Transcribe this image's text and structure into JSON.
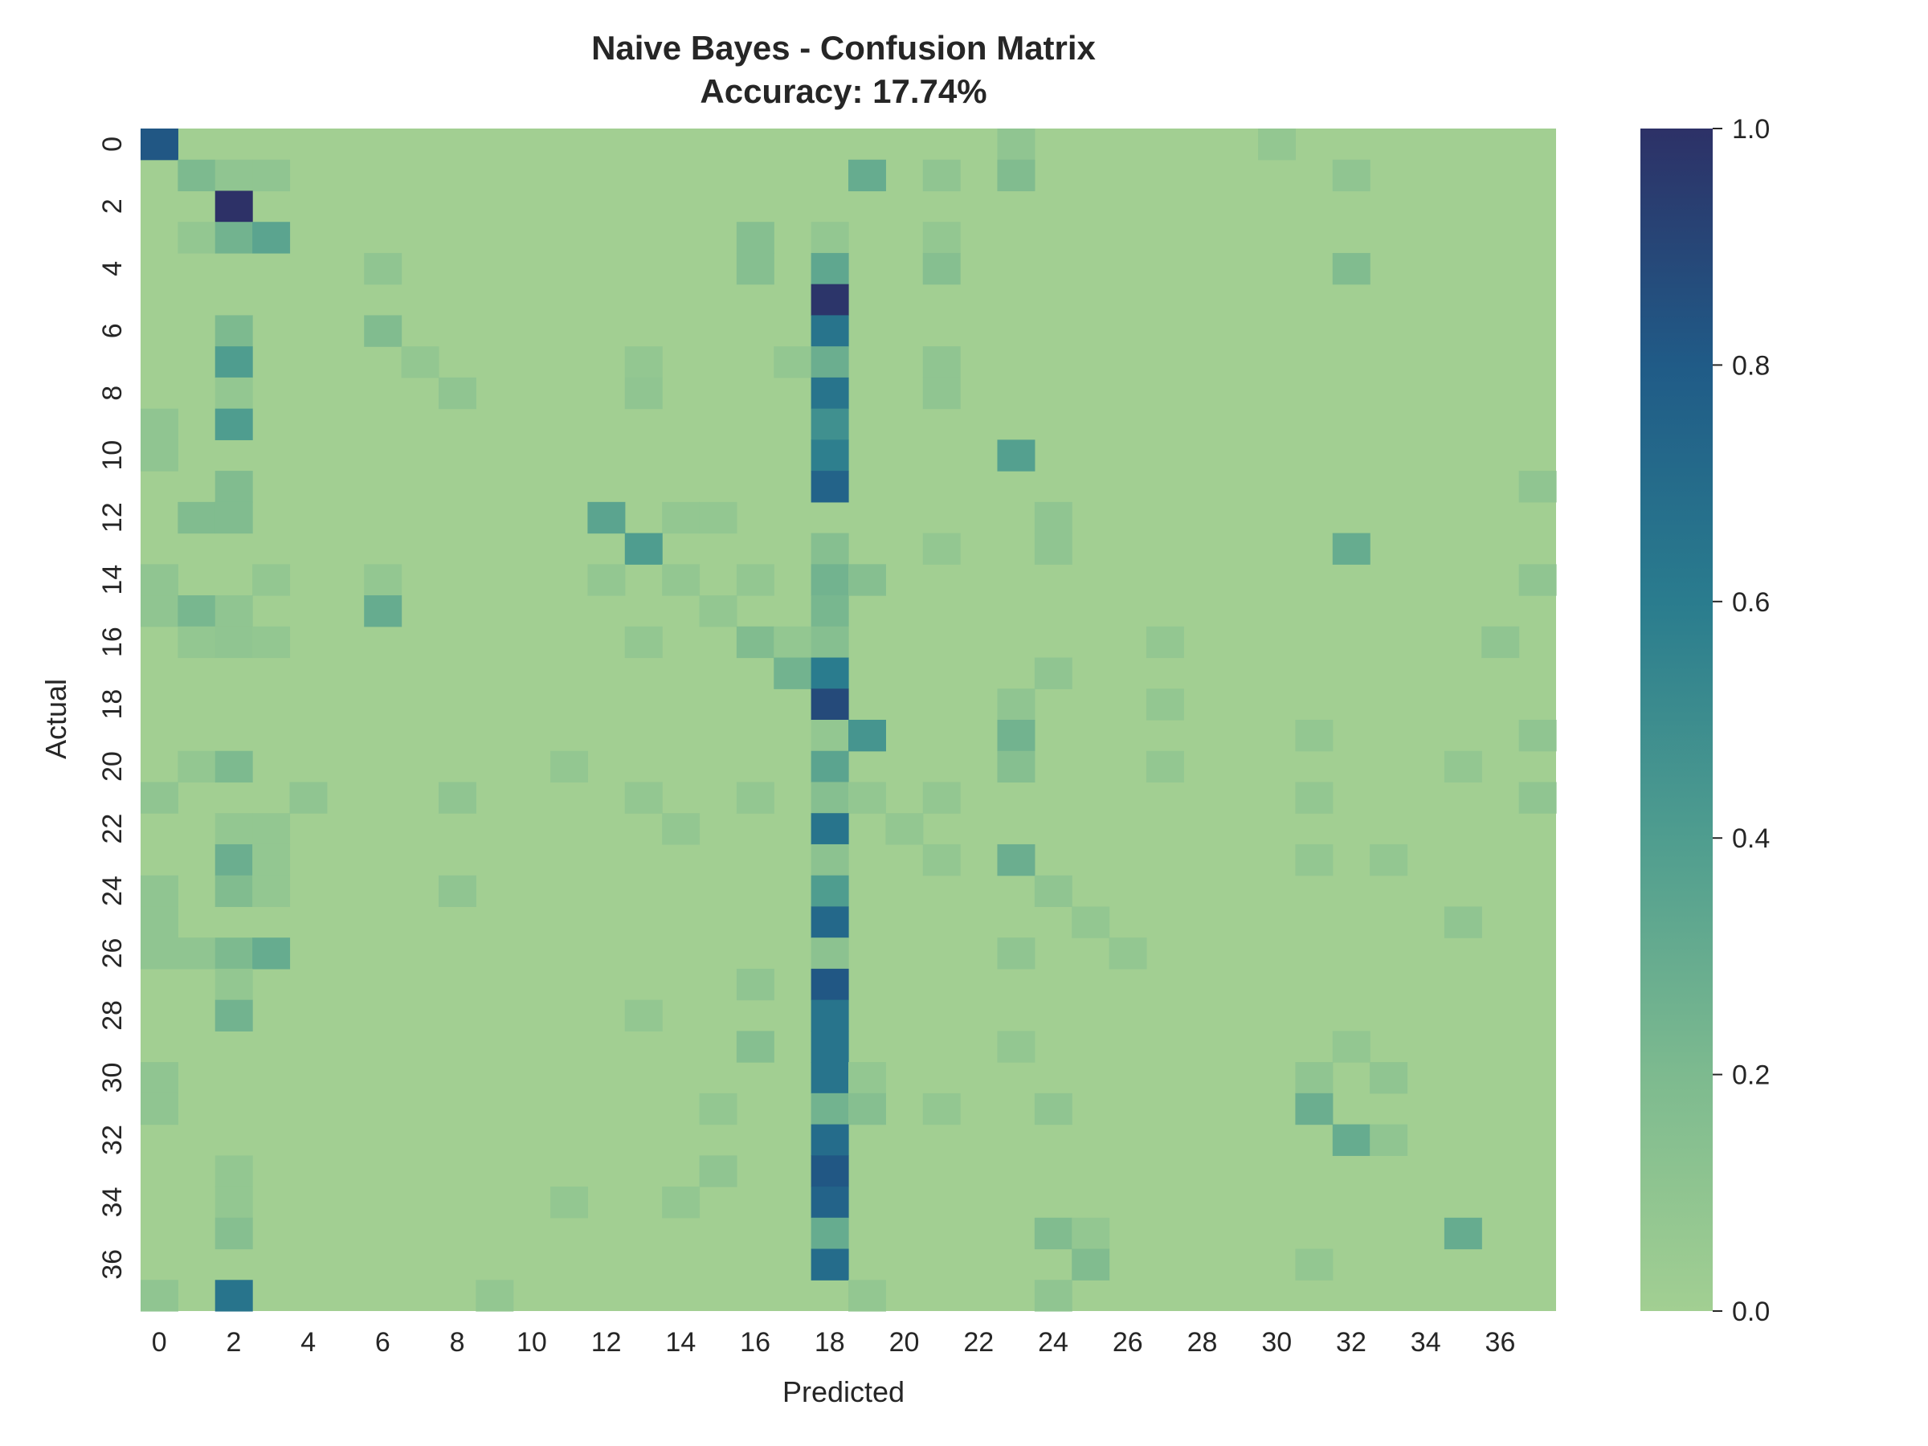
{
  "chart_data": {
    "type": "heatmap",
    "title": "Naive Bayes - Confusion Matrix",
    "subtitle": "Accuracy: 17.74%",
    "xlabel": "Predicted",
    "ylabel": "Actual",
    "n_classes": 38,
    "x_tick_labels": [
      "0",
      "2",
      "4",
      "6",
      "8",
      "10",
      "12",
      "14",
      "16",
      "18",
      "20",
      "22",
      "24",
      "26",
      "28",
      "30",
      "32",
      "34",
      "36"
    ],
    "y_tick_labels": [
      "0",
      "2",
      "4",
      "6",
      "8",
      "10",
      "12",
      "14",
      "16",
      "18",
      "20",
      "22",
      "24",
      "26",
      "28",
      "30",
      "32",
      "34",
      "36"
    ],
    "colorbar": {
      "range": [
        0.0,
        1.0
      ],
      "tick_labels": [
        "0.0",
        "0.2",
        "0.4",
        "0.6",
        "0.8",
        "1.0"
      ],
      "colors": [
        "#a2cf92",
        "#7dba8f",
        "#4f9d8f",
        "#2a7c8e",
        "#205b87",
        "#2d3167"
      ]
    },
    "cells": [
      [
        0,
        0,
        0.82
      ],
      [
        0,
        23,
        0.1
      ],
      [
        0,
        30,
        0.08
      ],
      [
        1,
        1,
        0.2
      ],
      [
        1,
        2,
        0.1
      ],
      [
        1,
        3,
        0.1
      ],
      [
        1,
        19,
        0.3
      ],
      [
        1,
        21,
        0.1
      ],
      [
        1,
        23,
        0.18
      ],
      [
        1,
        32,
        0.1
      ],
      [
        2,
        2,
        1.0
      ],
      [
        3,
        1,
        0.08
      ],
      [
        3,
        2,
        0.25
      ],
      [
        3,
        3,
        0.35
      ],
      [
        3,
        16,
        0.15
      ],
      [
        3,
        18,
        0.08
      ],
      [
        3,
        21,
        0.08
      ],
      [
        4,
        6,
        0.1
      ],
      [
        4,
        16,
        0.15
      ],
      [
        4,
        18,
        0.33
      ],
      [
        4,
        21,
        0.15
      ],
      [
        4,
        32,
        0.18
      ],
      [
        5,
        18,
        0.98
      ],
      [
        6,
        2,
        0.2
      ],
      [
        6,
        6,
        0.18
      ],
      [
        6,
        18,
        0.65
      ],
      [
        7,
        2,
        0.4
      ],
      [
        7,
        7,
        0.08
      ],
      [
        7,
        13,
        0.08
      ],
      [
        7,
        17,
        0.08
      ],
      [
        7,
        18,
        0.28
      ],
      [
        7,
        21,
        0.1
      ],
      [
        8,
        2,
        0.08
      ],
      [
        8,
        8,
        0.1
      ],
      [
        8,
        13,
        0.1
      ],
      [
        8,
        18,
        0.65
      ],
      [
        8,
        21,
        0.1
      ],
      [
        9,
        0,
        0.1
      ],
      [
        9,
        2,
        0.4
      ],
      [
        9,
        18,
        0.48
      ],
      [
        10,
        0,
        0.1
      ],
      [
        10,
        18,
        0.58
      ],
      [
        10,
        23,
        0.38
      ],
      [
        11,
        2,
        0.18
      ],
      [
        11,
        18,
        0.75
      ],
      [
        11,
        37,
        0.1
      ],
      [
        12,
        1,
        0.18
      ],
      [
        12,
        2,
        0.18
      ],
      [
        12,
        12,
        0.35
      ],
      [
        12,
        14,
        0.08
      ],
      [
        12,
        15,
        0.08
      ],
      [
        12,
        24,
        0.1
      ],
      [
        13,
        13,
        0.4
      ],
      [
        13,
        18,
        0.15
      ],
      [
        13,
        21,
        0.08
      ],
      [
        13,
        24,
        0.1
      ],
      [
        13,
        32,
        0.3
      ],
      [
        14,
        0,
        0.1
      ],
      [
        14,
        3,
        0.08
      ],
      [
        14,
        6,
        0.08
      ],
      [
        14,
        12,
        0.08
      ],
      [
        14,
        14,
        0.08
      ],
      [
        14,
        16,
        0.08
      ],
      [
        14,
        18,
        0.25
      ],
      [
        14,
        19,
        0.15
      ],
      [
        14,
        37,
        0.1
      ],
      [
        15,
        0,
        0.1
      ],
      [
        15,
        1,
        0.22
      ],
      [
        15,
        2,
        0.1
      ],
      [
        15,
        6,
        0.3
      ],
      [
        15,
        15,
        0.08
      ],
      [
        15,
        18,
        0.22
      ],
      [
        16,
        1,
        0.08
      ],
      [
        16,
        2,
        0.1
      ],
      [
        16,
        3,
        0.08
      ],
      [
        16,
        13,
        0.08
      ],
      [
        16,
        16,
        0.18
      ],
      [
        16,
        17,
        0.08
      ],
      [
        16,
        18,
        0.15
      ],
      [
        16,
        27,
        0.08
      ],
      [
        16,
        36,
        0.1
      ],
      [
        17,
        17,
        0.25
      ],
      [
        17,
        18,
        0.6
      ],
      [
        17,
        24,
        0.1
      ],
      [
        18,
        18,
        0.88
      ],
      [
        18,
        23,
        0.1
      ],
      [
        18,
        27,
        0.08
      ],
      [
        19,
        18,
        0.08
      ],
      [
        19,
        19,
        0.45
      ],
      [
        19,
        23,
        0.25
      ],
      [
        19,
        31,
        0.08
      ],
      [
        19,
        37,
        0.1
      ],
      [
        20,
        1,
        0.08
      ],
      [
        20,
        2,
        0.2
      ],
      [
        20,
        11,
        0.08
      ],
      [
        20,
        18,
        0.35
      ],
      [
        20,
        23,
        0.15
      ],
      [
        20,
        27,
        0.08
      ],
      [
        20,
        35,
        0.08
      ],
      [
        21,
        0,
        0.1
      ],
      [
        21,
        4,
        0.1
      ],
      [
        21,
        8,
        0.1
      ],
      [
        21,
        13,
        0.08
      ],
      [
        21,
        16,
        0.08
      ],
      [
        21,
        18,
        0.15
      ],
      [
        21,
        19,
        0.08
      ],
      [
        21,
        21,
        0.08
      ],
      [
        21,
        31,
        0.08
      ],
      [
        21,
        37,
        0.1
      ],
      [
        22,
        2,
        0.08
      ],
      [
        22,
        3,
        0.08
      ],
      [
        22,
        14,
        0.08
      ],
      [
        22,
        18,
        0.65
      ],
      [
        22,
        20,
        0.08
      ],
      [
        23,
        2,
        0.28
      ],
      [
        23,
        3,
        0.08
      ],
      [
        23,
        18,
        0.12
      ],
      [
        23,
        21,
        0.08
      ],
      [
        23,
        23,
        0.28
      ],
      [
        23,
        31,
        0.08
      ],
      [
        23,
        33,
        0.08
      ],
      [
        24,
        0,
        0.1
      ],
      [
        24,
        2,
        0.18
      ],
      [
        24,
        3,
        0.08
      ],
      [
        24,
        8,
        0.1
      ],
      [
        24,
        18,
        0.4
      ],
      [
        24,
        24,
        0.1
      ],
      [
        25,
        0,
        0.1
      ],
      [
        25,
        18,
        0.72
      ],
      [
        25,
        25,
        0.08
      ],
      [
        25,
        35,
        0.1
      ],
      [
        26,
        0,
        0.1
      ],
      [
        26,
        1,
        0.1
      ],
      [
        26,
        2,
        0.2
      ],
      [
        26,
        3,
        0.3
      ],
      [
        26,
        18,
        0.12
      ],
      [
        26,
        23,
        0.1
      ],
      [
        26,
        26,
        0.08
      ],
      [
        27,
        2,
        0.08
      ],
      [
        27,
        16,
        0.1
      ],
      [
        27,
        18,
        0.82
      ],
      [
        28,
        2,
        0.25
      ],
      [
        28,
        13,
        0.08
      ],
      [
        28,
        18,
        0.65
      ],
      [
        29,
        16,
        0.15
      ],
      [
        29,
        18,
        0.65
      ],
      [
        29,
        23,
        0.08
      ],
      [
        29,
        32,
        0.08
      ],
      [
        30,
        0,
        0.1
      ],
      [
        30,
        18,
        0.65
      ],
      [
        30,
        19,
        0.08
      ],
      [
        30,
        31,
        0.1
      ],
      [
        30,
        33,
        0.1
      ],
      [
        31,
        0,
        0.1
      ],
      [
        31,
        15,
        0.08
      ],
      [
        31,
        18,
        0.25
      ],
      [
        31,
        19,
        0.15
      ],
      [
        31,
        21,
        0.08
      ],
      [
        31,
        24,
        0.1
      ],
      [
        31,
        31,
        0.28
      ],
      [
        32,
        18,
        0.7
      ],
      [
        32,
        32,
        0.3
      ],
      [
        32,
        33,
        0.1
      ],
      [
        33,
        2,
        0.08
      ],
      [
        33,
        15,
        0.1
      ],
      [
        33,
        18,
        0.82
      ],
      [
        34,
        2,
        0.08
      ],
      [
        34,
        11,
        0.08
      ],
      [
        34,
        14,
        0.08
      ],
      [
        34,
        18,
        0.75
      ],
      [
        35,
        2,
        0.15
      ],
      [
        35,
        18,
        0.3
      ],
      [
        35,
        24,
        0.18
      ],
      [
        35,
        25,
        0.08
      ],
      [
        35,
        35,
        0.3
      ],
      [
        36,
        18,
        0.7
      ],
      [
        36,
        25,
        0.18
      ],
      [
        36,
        31,
        0.08
      ],
      [
        37,
        0,
        0.1
      ],
      [
        37,
        2,
        0.65
      ],
      [
        37,
        9,
        0.08
      ],
      [
        37,
        19,
        0.08
      ],
      [
        37,
        24,
        0.1
      ]
    ]
  }
}
